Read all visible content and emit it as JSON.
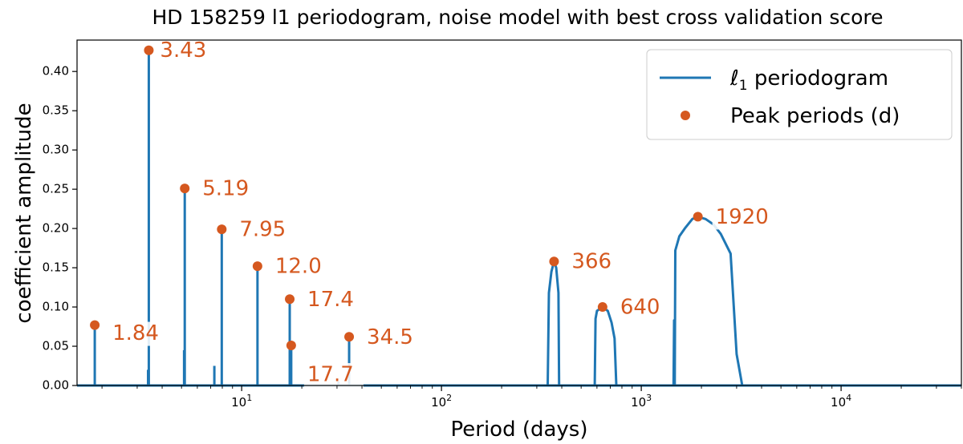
{
  "chart_data": {
    "type": "line",
    "title": "HD 158259 l1 periodogram, noise model with best cross validation score",
    "xlabel": "Period (days)",
    "ylabel": "coefficient amplitude",
    "xscale": "log",
    "xlim": [
      1.5,
      40000
    ],
    "ylim": [
      0,
      0.44
    ],
    "yticks": [
      "0.00",
      "0.05",
      "0.10",
      "0.15",
      "0.20",
      "0.25",
      "0.30",
      "0.35",
      "0.40"
    ],
    "xticks": [
      {
        "base": "10",
        "exp": "1",
        "value": 10
      },
      {
        "base": "10",
        "exp": "2",
        "value": 100
      },
      {
        "base": "10",
        "exp": "3",
        "value": 1000
      },
      {
        "base": "10",
        "exp": "4",
        "value": 10000
      }
    ],
    "legend": {
      "position": "top-right",
      "periodogram_symbol": "ℓ",
      "periodogram_subscript": "1",
      "periodogram_rest": " periodogram",
      "peaks_label": "Peak periods (d)"
    },
    "colors": {
      "line": "#1f77b4",
      "peaks": "#d5581f"
    },
    "series": [
      {
        "name": "l1 periodogram",
        "spikes": [
          {
            "x": 1.84,
            "y": 0.077
          },
          {
            "x": 3.4,
            "y": 0.02
          },
          {
            "x": 3.43,
            "y": 0.427
          },
          {
            "x": 5.15,
            "y": 0.045
          },
          {
            "x": 5.19,
            "y": 0.251
          },
          {
            "x": 7.3,
            "y": 0.025
          },
          {
            "x": 7.95,
            "y": 0.199
          },
          {
            "x": 12.0,
            "y": 0.152
          },
          {
            "x": 17.4,
            "y": 0.11
          },
          {
            "x": 17.7,
            "y": 0.051
          },
          {
            "x": 30.5,
            "y": 0.005
          },
          {
            "x": 34.5,
            "y": 0.062
          }
        ],
        "curves": [
          [
            [
              340,
              0
            ],
            [
              345,
              0.118
            ],
            [
              355,
              0.145
            ],
            [
              366,
              0.158
            ],
            [
              375,
              0.15
            ],
            [
              385,
              0.118
            ],
            [
              388,
              0
            ]
          ],
          [
            [
              585,
              0
            ],
            [
              590,
              0.085
            ],
            [
              600,
              0.095
            ],
            [
              640,
              0.1
            ],
            [
              680,
              0.095
            ],
            [
              710,
              0.08
            ],
            [
              735,
              0.06
            ],
            [
              750,
              0
            ]
          ],
          [
            [
              1450,
              0
            ],
            [
              1460,
              0.083
            ],
            [
              1470,
              0
            ],
            [
              1480,
              0.172
            ],
            [
              1550,
              0.19
            ],
            [
              1650,
              0.2
            ],
            [
              1800,
              0.212
            ],
            [
              1920,
              0.215
            ],
            [
              2100,
              0.212
            ],
            [
              2300,
              0.205
            ],
            [
              2500,
              0.193
            ],
            [
              2800,
              0.168
            ],
            [
              3000,
              0.04
            ],
            [
              3200,
              0
            ]
          ]
        ]
      },
      {
        "name": "Peak periods (d)",
        "points": [
          {
            "x": 1.84,
            "y": 0.077,
            "label": "1.84"
          },
          {
            "x": 3.43,
            "y": 0.427,
            "label": "3.43"
          },
          {
            "x": 5.19,
            "y": 0.251,
            "label": "5.19"
          },
          {
            "x": 7.95,
            "y": 0.199,
            "label": "7.95"
          },
          {
            "x": 12.0,
            "y": 0.152,
            "label": "12.0"
          },
          {
            "x": 17.4,
            "y": 0.11,
            "label": "17.4"
          },
          {
            "x": 17.7,
            "y": 0.051,
            "label": "17.7"
          },
          {
            "x": 34.5,
            "y": 0.062,
            "label": "34.5"
          },
          {
            "x": 366,
            "y": 0.158,
            "label": "366"
          },
          {
            "x": 640,
            "y": 0.1,
            "label": "640"
          },
          {
            "x": 1920,
            "y": 0.215,
            "label": "1920"
          }
        ]
      }
    ]
  }
}
